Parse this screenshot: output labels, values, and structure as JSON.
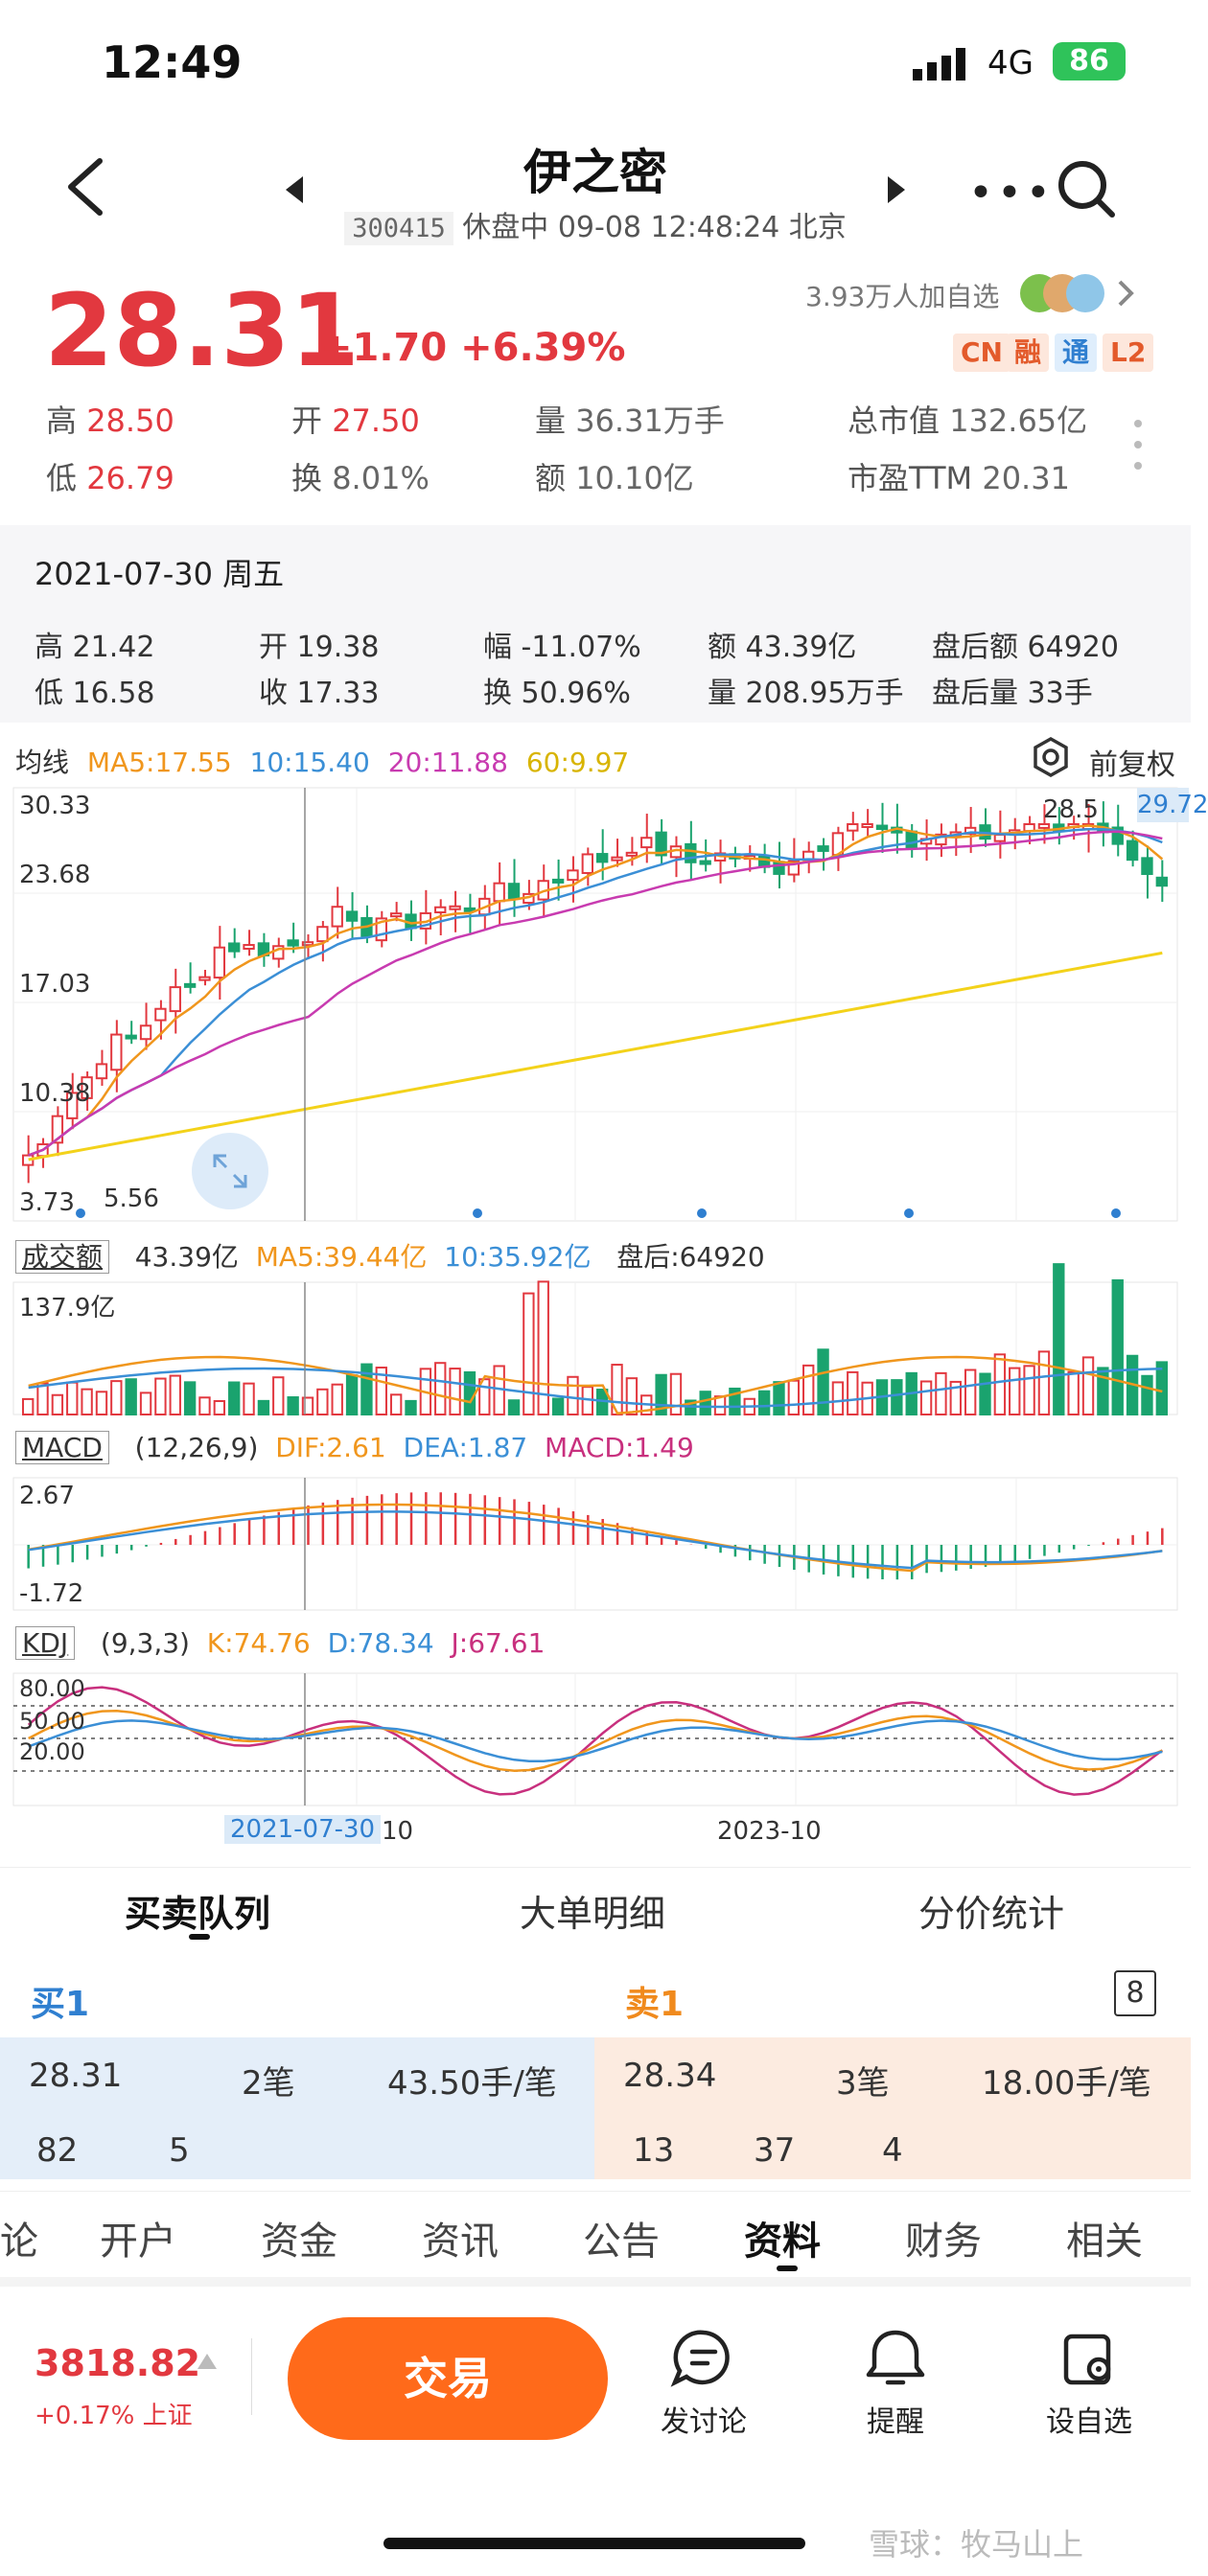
{
  "status_bar": {
    "time": "12:49",
    "network": "4G",
    "battery": "86"
  },
  "header": {
    "stock_name": "伊之密",
    "stock_code": "300415",
    "status_line": "休盘中 09-08 12:48:24 北京"
  },
  "quote": {
    "price": "28.31",
    "change": "+1.70 +6.39%",
    "watch_count": "3.93万人加自选",
    "tags": [
      "CN",
      "融",
      "通",
      "L2"
    ],
    "high_label": "高",
    "high": "28.50",
    "low_label": "低",
    "low": "26.79",
    "open_label": "开",
    "open": "27.50",
    "turnover_label": "换",
    "turnover": "8.01%",
    "volume_label": "量",
    "volume": "36.31万手",
    "amount_label": "额",
    "amount": "10.10亿",
    "mktcap_label": "总市值",
    "mktcap": "132.65亿",
    "pe_label": "市盈TTM",
    "pe": "20.31"
  },
  "day_detail": {
    "date": "2021-07-30 周五",
    "high": "高 21.42",
    "low": "低 16.58",
    "open": "开 19.38",
    "close": "收 17.33",
    "amplitude": "幅 -11.07%",
    "turnover": "换 50.96%",
    "amount": "额 43.39亿",
    "volume": "量 208.95万手",
    "after_amount": "盘后额 64920",
    "after_volume": "盘后量 33手"
  },
  "kline": {
    "ma_title": "均线",
    "ma5": "MA5:17.55",
    "ma10": "10:15.40",
    "ma20": "20:11.88",
    "ma60": "60:9.97",
    "fuquan": "前复权",
    "y_labels": [
      "30.33",
      "23.68",
      "17.03",
      "10.38",
      "3.73"
    ],
    "low_note": "5.56",
    "high_note": "28.5",
    "last_price_tag": "29.72",
    "colors": {
      "up": "#e2383f",
      "down": "#1aa36e",
      "ma5": "#f0961d",
      "ma10": "#3b8fd6",
      "ma20": "#c83bb0",
      "ma60": "#f3d21a"
    }
  },
  "volume_panel": {
    "tag": "成交额",
    "value": "43.39亿",
    "ma5": "MA5:39.44亿",
    "ma10": "10:35.92亿",
    "after": "盘后:64920",
    "y_label": "137.9亿"
  },
  "macd_panel": {
    "tag": "MACD",
    "params": "(12,26,9)",
    "dif": "DIF:2.61",
    "dea": "DEA:1.87",
    "macd": "MACD:1.49",
    "y_top": "2.67",
    "y_bottom": "-1.72"
  },
  "kdj_panel": {
    "tag": "KDJ",
    "params": "(9,3,3)",
    "k": "K:74.76",
    "d": "D:78.34",
    "j": "J:67.61",
    "y_labels": [
      "80.00",
      "50.00",
      "20.00"
    ]
  },
  "x_axis": {
    "crosshair_date": "2021-07-30",
    "crosshair_suffix": "10",
    "label": "2023-10"
  },
  "orderbook_tabs": [
    "买卖队列",
    "大单明细",
    "分价统计"
  ],
  "orderbook": {
    "buy_title": "买1",
    "sell_title": "卖1",
    "level_badge": "8",
    "buy": {
      "price": "28.31",
      "count": "2笔",
      "avg": "43.50手/笔",
      "queue": [
        "82",
        "5"
      ]
    },
    "sell": {
      "price": "28.34",
      "count": "3笔",
      "avg": "18.00手/笔",
      "queue": [
        "13",
        "37",
        "4"
      ]
    }
  },
  "nav_tabs": [
    "论",
    "开户",
    "资金",
    "资讯",
    "公告",
    "资料",
    "财务",
    "相关"
  ],
  "bottom_bar": {
    "index_value": "3818.82",
    "index_change": "+0.17% 上证",
    "trade_label": "交易",
    "discuss_label": "发讨论",
    "alert_label": "提醒",
    "watch_label": "设自选"
  },
  "watermark": "雪球：牧马山上"
}
